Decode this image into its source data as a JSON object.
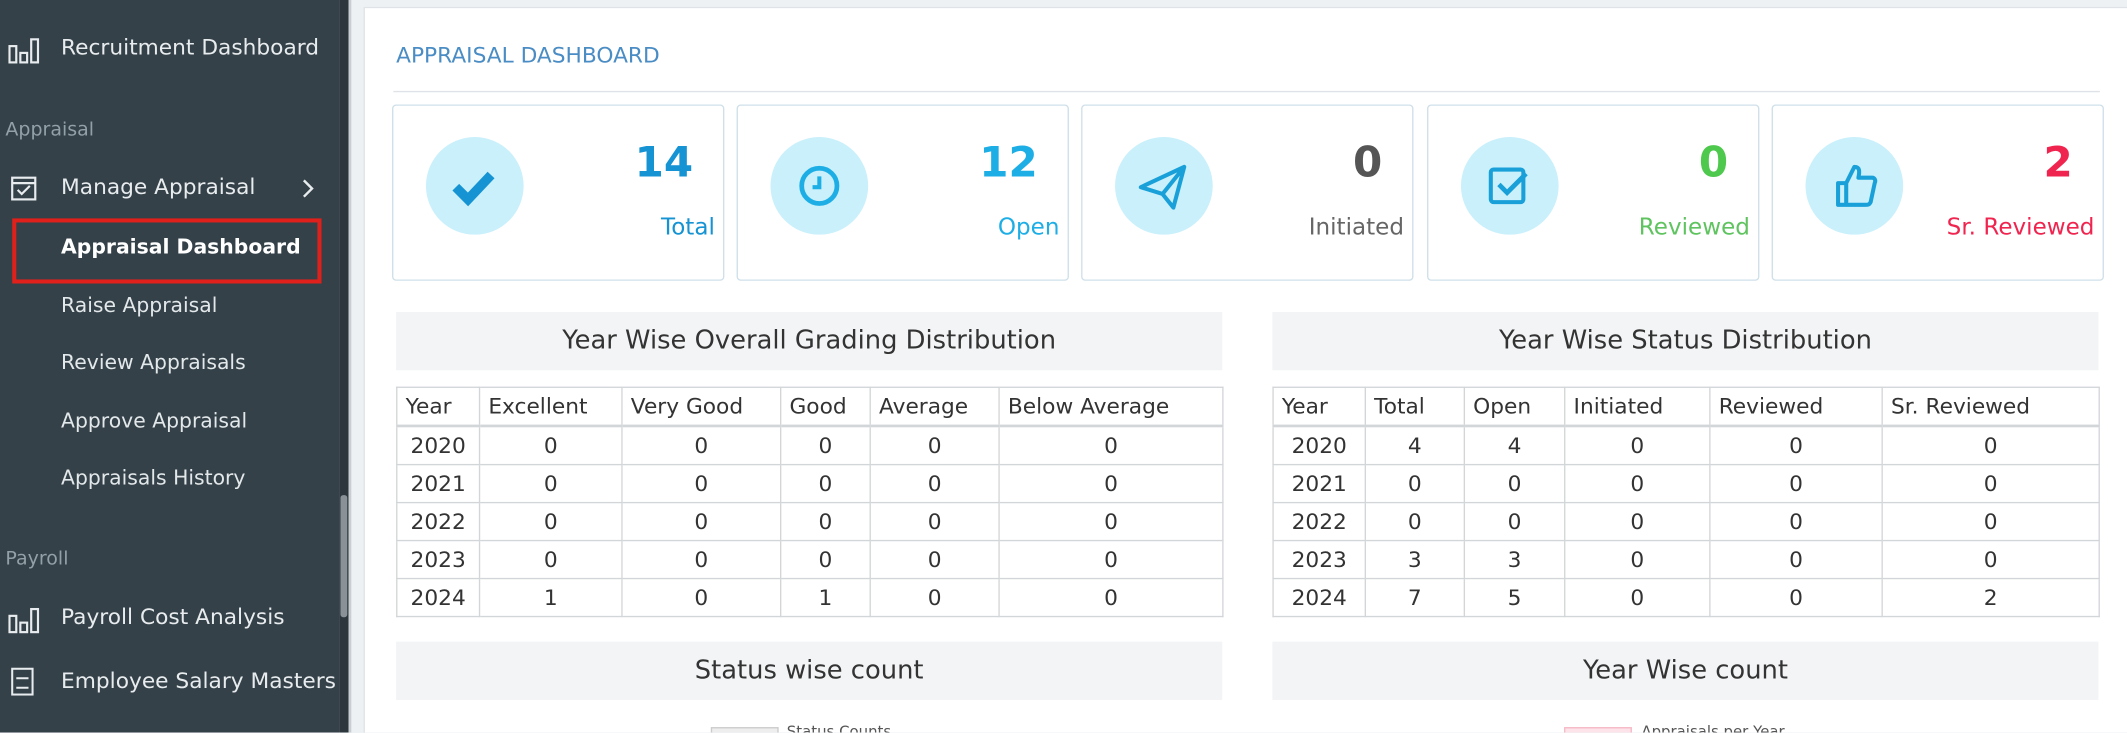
{
  "sidebar": [
    "Recruitment Dashboard",
    "Appraisal",
    "Manage Appraisal",
    "Appraisal Dashboard",
    "Raise Appraisal",
    "Review Appraisals",
    "Approve Appraisal",
    "Appraisals History",
    "Payroll",
    "Payroll Cost Analysis",
    "Employee Salary Masters"
  ],
  "header": {
    "title": "APPRAISAL DASHBOARD"
  },
  "cards": [
    {
      "value": 14,
      "label": "Total"
    },
    {
      "value": 12,
      "label": "Open"
    },
    {
      "value": 0,
      "label": "Initiated"
    },
    {
      "value": 0,
      "label": "Reviewed"
    },
    {
      "value": 2,
      "label": "Sr. Reviewed"
    }
  ],
  "grading_table": {
    "title": "Year Wise Overall Grading Distribution",
    "columns": [
      "Year",
      "Excellent",
      "Very Good",
      "Good",
      "Average",
      "Below Average"
    ],
    "rows": [
      [
        2020,
        0,
        0,
        0,
        0,
        0
      ],
      [
        2021,
        0,
        0,
        0,
        0,
        0
      ],
      [
        2022,
        0,
        0,
        0,
        0,
        0
      ],
      [
        2023,
        0,
        0,
        0,
        0,
        0
      ],
      [
        2024,
        1,
        0,
        1,
        0,
        0
      ]
    ]
  },
  "status_table": {
    "title": "Year Wise Status Distribution",
    "columns": [
      "Year",
      "Total",
      "Open",
      "Initiated",
      "Reviewed",
      "Sr. Reviewed"
    ],
    "rows": [
      [
        2020,
        4,
        4,
        0,
        0,
        0
      ],
      [
        2021,
        0,
        0,
        0,
        0,
        0
      ],
      [
        2022,
        0,
        0,
        0,
        0,
        0
      ],
      [
        2023,
        3,
        3,
        0,
        0,
        0
      ],
      [
        2024,
        7,
        5,
        0,
        0,
        2
      ]
    ]
  },
  "charts": [
    {
      "title": "Status wise count",
      "legend": "Status Counts"
    },
    {
      "title": "Year Wise count",
      "legend": "Appraisals per Year"
    }
  ]
}
